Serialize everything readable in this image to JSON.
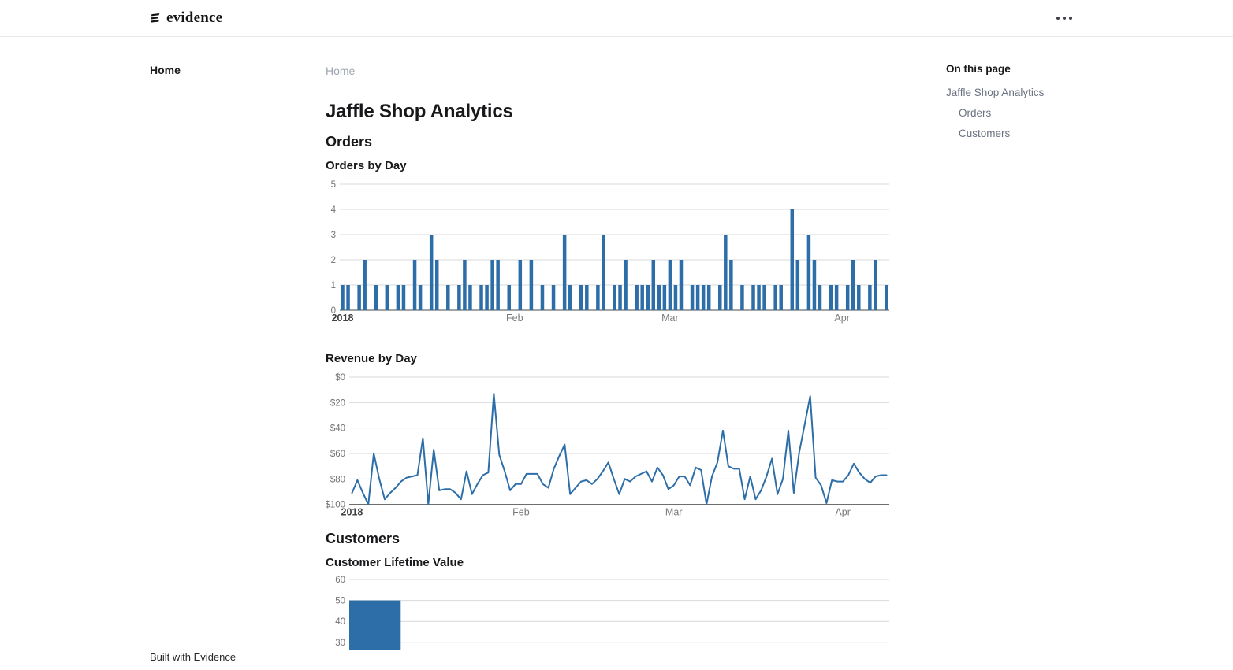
{
  "header": {
    "logo_text": "evidence",
    "menu_tooltip": "More options"
  },
  "sidebar": {
    "items": [
      {
        "label": "Home",
        "active": true
      }
    ],
    "footer_label": "Built with Evidence"
  },
  "breadcrumb": {
    "label": "Home"
  },
  "page": {
    "title": "Jaffle Shop Analytics"
  },
  "sections": {
    "orders": {
      "heading": "Orders"
    },
    "customers": {
      "heading": "Customers"
    }
  },
  "toc": {
    "title": "On this page",
    "items": [
      {
        "label": "Jaffle Shop Analytics",
        "level": 0
      },
      {
        "label": "Orders",
        "level": 1
      },
      {
        "label": "Customers",
        "level": 1
      }
    ]
  },
  "chart_data": [
    {
      "id": "orders-by-day",
      "type": "bar",
      "title": "Orders by Day",
      "x_start": "2018-01-01",
      "x_unit": "day",
      "values": [
        1,
        1,
        0,
        1,
        2,
        0,
        1,
        0,
        1,
        0,
        1,
        1,
        0,
        2,
        1,
        0,
        3,
        2,
        0,
        1,
        0,
        1,
        2,
        1,
        0,
        1,
        1,
        2,
        2,
        0,
        1,
        0,
        2,
        0,
        2,
        0,
        1,
        0,
        1,
        0,
        3,
        1,
        0,
        1,
        1,
        0,
        1,
        3,
        0,
        1,
        1,
        2,
        0,
        1,
        1,
        1,
        2,
        1,
        1,
        2,
        1,
        2,
        0,
        1,
        1,
        1,
        1,
        0,
        1,
        3,
        2,
        0,
        1,
        0,
        1,
        1,
        1,
        0,
        1,
        1,
        0,
        4,
        2,
        0,
        3,
        2,
        1,
        0,
        1,
        1,
        0,
        1,
        2,
        1,
        0,
        1,
        2,
        0,
        1
      ],
      "ylim": [
        0,
        5
      ],
      "ytick_labels": [
        "5",
        "4",
        "3",
        "2",
        "1",
        "0"
      ],
      "x_ticks": [
        {
          "label": "2018",
          "day": 1,
          "emphasis": true
        },
        {
          "label": "Feb",
          "day": 32
        },
        {
          "label": "Mar",
          "day": 60
        },
        {
          "label": "Apr",
          "day": 91
        }
      ],
      "color": "#2d6ea8",
      "grid": true,
      "legend": false
    },
    {
      "id": "revenue-by-day",
      "type": "line",
      "title": "Revenue by Day",
      "x_start": "2018-01-01",
      "x_unit": "day",
      "values": [
        9,
        19,
        9,
        0,
        40,
        20,
        4,
        9,
        13,
        18,
        21,
        22,
        23,
        52,
        0,
        43,
        11,
        12,
        12,
        9,
        4,
        26,
        8,
        16,
        23,
        25,
        87,
        39,
        26,
        11,
        16,
        16,
        24,
        24,
        24,
        16,
        13,
        28,
        38,
        47,
        8,
        13,
        18,
        19,
        16,
        20,
        26,
        33,
        20,
        8,
        20,
        18,
        22,
        24,
        26,
        18,
        29,
        23,
        12,
        15,
        22,
        22,
        15,
        29,
        27,
        0,
        22,
        33,
        58,
        30,
        28,
        28,
        4,
        22,
        4,
        11,
        22,
        36,
        8,
        20,
        58,
        9,
        41,
        63,
        85,
        21,
        15,
        1,
        19,
        18,
        18,
        23,
        32,
        25,
        20,
        17,
        22,
        23,
        23
      ],
      "ylim": [
        0,
        100
      ],
      "ytick_labels": [
        "$100",
        "$80",
        "$60",
        "$40",
        "$20",
        "$0"
      ],
      "x_ticks": [
        {
          "label": "2018",
          "day": 1,
          "emphasis": true
        },
        {
          "label": "Feb",
          "day": 32
        },
        {
          "label": "Mar",
          "day": 60
        },
        {
          "label": "Apr",
          "day": 91
        }
      ],
      "color": "#2d6ea8",
      "grid": true,
      "legend": false
    },
    {
      "id": "customer-lifetime-value",
      "type": "histogram",
      "title": "Customer Lifetime Value",
      "visible_ytick_labels": [
        "60",
        "50",
        "40",
        "30"
      ],
      "ylim_visible_top": 60,
      "visible_bars": [
        {
          "value": 50
        }
      ],
      "color": "#2d6ea8",
      "grid": true,
      "partially_visible": true
    }
  ]
}
